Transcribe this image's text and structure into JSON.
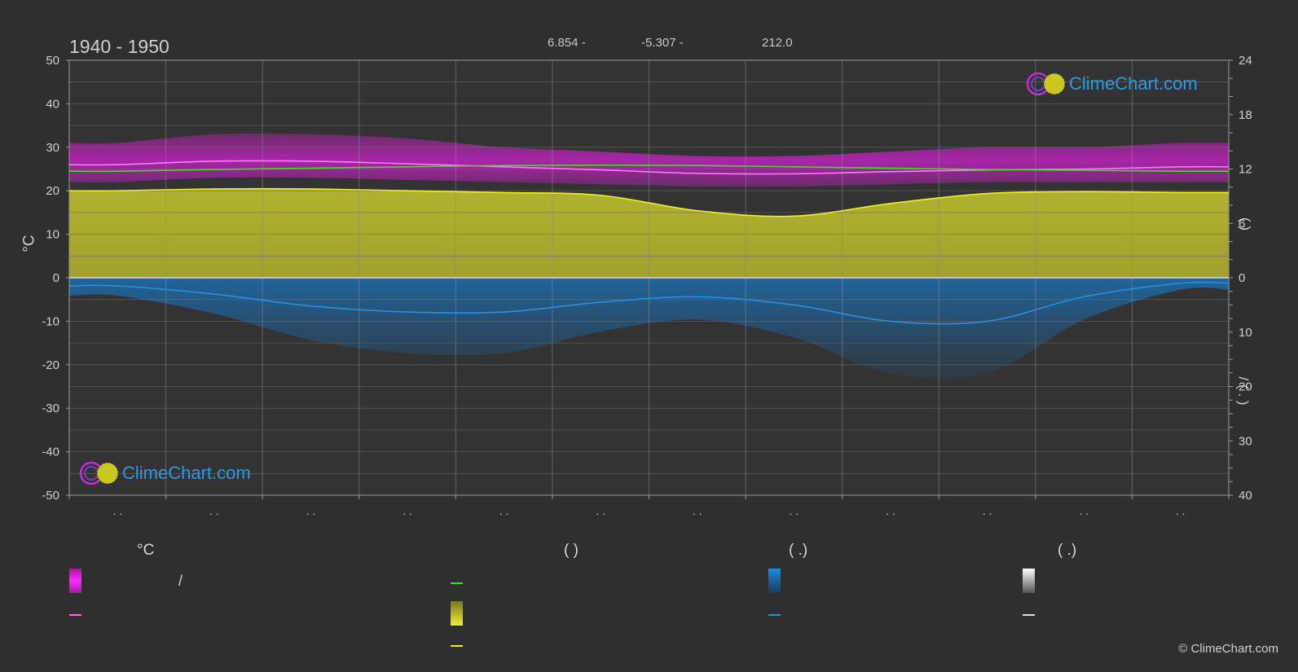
{
  "header": {
    "year_range": "1940 - 1950",
    "coord_lat": "6.854 -",
    "coord_lon": "-5.307 -",
    "elevation": "212.0"
  },
  "axes": {
    "left_unit": "°C",
    "left_ticks": [
      "50",
      "40",
      "30",
      "20",
      "10",
      "0",
      "-10",
      "-20",
      "-30",
      "-40",
      "-50"
    ],
    "right_ticks_top": [
      "24",
      "18",
      "12",
      "6",
      "0"
    ],
    "right_ticks_bottom": [
      "10",
      "20",
      "30",
      "40"
    ],
    "right_label_upper": "(  )",
    "right_label_lower": "/  ( . )"
  },
  "x_ticks": [
    ". .",
    ". .",
    ". .",
    ". .",
    ". .",
    ". .",
    ". .",
    ". .",
    ". .",
    ". .",
    ". .",
    ". ."
  ],
  "legend": {
    "col1_head": "°C",
    "col2_head": "(          )",
    "col3_head": "(   .)",
    "col4_head": "(   .)",
    "col1_row1_text": "/",
    "colors": {
      "magenta": "#e020e0",
      "magenta_line": "#ff66ff",
      "green_line": "#44dd22",
      "yellow": "#e6e632",
      "yellow_line": "#f0f020",
      "blue": "#1e88e5",
      "blue_line": "#2a8fe0",
      "white": "#e0e0e0"
    }
  },
  "logo": {
    "text": "ClimeChart.com"
  },
  "copyright": "© ClimeChart.com",
  "chart_data": {
    "type": "area",
    "x_months": [
      1,
      2,
      3,
      4,
      5,
      6,
      7,
      8,
      9,
      10,
      11,
      12
    ],
    "left_axis": {
      "label": "°C",
      "ylim": [
        -50,
        50
      ]
    },
    "right_axis_top": {
      "ylim": [
        0,
        24
      ],
      "note": "hours"
    },
    "right_axis_bottom": {
      "ylim": [
        0,
        40
      ],
      "note": "precipitation, inverted"
    },
    "grid": true,
    "series": [
      {
        "name": "",
        "kind": "line",
        "color": "#ff77ff",
        "values": [
          26,
          26.8,
          26.8,
          26.2,
          25.5,
          24.8,
          24.0,
          23.9,
          24.4,
          24.8,
          25.0,
          25.5
        ]
      },
      {
        "name": "",
        "kind": "line",
        "color": "#44dd22",
        "values": [
          24.5,
          24.9,
          25.2,
          25.5,
          25.8,
          25.9,
          25.8,
          25.5,
          25.2,
          24.9,
          24.7,
          24.5
        ]
      },
      {
        "name": "",
        "kind": "area-band",
        "color": "#d02ad0",
        "low": [
          22,
          23,
          23,
          22.5,
          22,
          21.5,
          21,
          21,
          21.5,
          22,
          22,
          22
        ],
        "high": [
          31,
          33,
          33,
          32,
          30,
          29,
          28,
          28,
          29,
          30,
          30,
          31
        ]
      },
      {
        "name": "",
        "kind": "line-hours",
        "color": "#f0f020",
        "values": [
          9.6,
          9.8,
          9.8,
          9.6,
          9.4,
          9.1,
          7.4,
          6.8,
          8.2,
          9.3,
          9.5,
          9.4
        ]
      },
      {
        "name": "",
        "kind": "line-precip",
        "color": "#2a8fe0",
        "values": [
          1.5,
          3.0,
          5.2,
          6.3,
          6.3,
          4.5,
          3.5,
          5.0,
          8.0,
          8.0,
          3.5,
          1.0
        ]
      }
    ]
  }
}
